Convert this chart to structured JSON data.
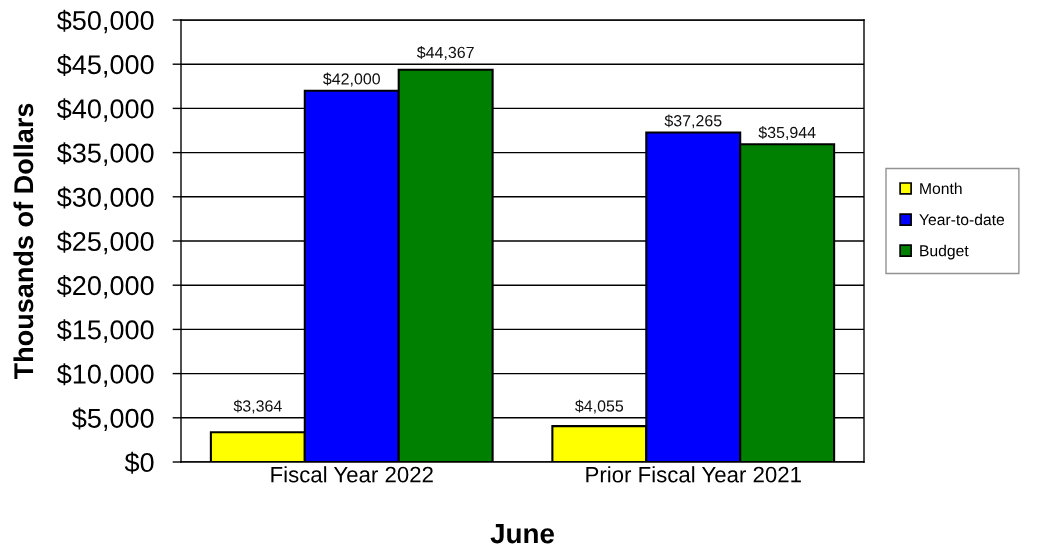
{
  "chart_data": {
    "type": "bar",
    "xlabel": "June",
    "ylabel": "Thousands of Dollars",
    "categories": [
      "Fiscal Year 2022",
      "Prior Fiscal Year 2021"
    ],
    "series": [
      {
        "name": "Month",
        "color": "#ffff00",
        "values": [
          3364,
          4055
        ],
        "value_labels": [
          "$3,364",
          "$4,055"
        ]
      },
      {
        "name": "Year-to-date",
        "color": "#0000ff",
        "values": [
          42000,
          37265
        ],
        "value_labels": [
          "$42,000",
          "$37,265"
        ]
      },
      {
        "name": "Budget",
        "color": "#008000",
        "values": [
          44367,
          35944
        ],
        "value_labels": [
          "$44,367",
          "$35,944"
        ]
      }
    ],
    "ylim": [
      0,
      50000
    ],
    "yticks": [
      {
        "value": 0,
        "label": "$0"
      },
      {
        "value": 5000,
        "label": "$5,000"
      },
      {
        "value": 10000,
        "label": "$10,000"
      },
      {
        "value": 15000,
        "label": "$15,000"
      },
      {
        "value": 20000,
        "label": "$20,000"
      },
      {
        "value": 25000,
        "label": "$25,000"
      },
      {
        "value": 30000,
        "label": "$30,000"
      },
      {
        "value": 35000,
        "label": "$35,000"
      },
      {
        "value": 40000,
        "label": "$40,000"
      },
      {
        "value": 45000,
        "label": "$45,000"
      },
      {
        "value": 50000,
        "label": "$50,000"
      }
    ],
    "grid": "y",
    "legend": "right"
  }
}
